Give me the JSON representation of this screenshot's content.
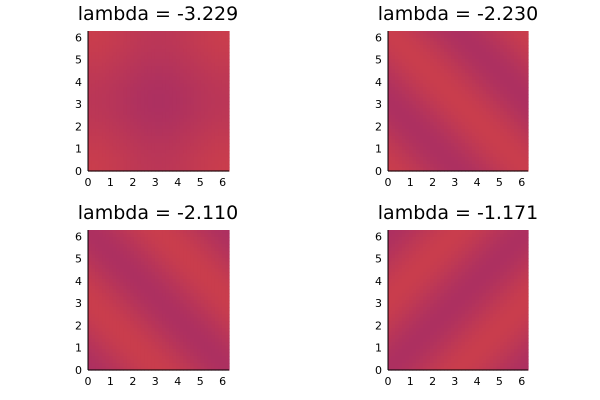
{
  "chart_data": [
    {
      "type": "heatmap",
      "title": "lambda = -3.229",
      "xlim": [
        0,
        6.283
      ],
      "ylim": [
        0,
        6.283
      ],
      "x_ticks": [
        "0",
        "1",
        "2",
        "3",
        "4",
        "5",
        "6"
      ],
      "y_ticks": [
        "0",
        "1",
        "2",
        "3",
        "4",
        "5",
        "6"
      ],
      "pattern": "cos(x) + cos(y)",
      "grid": false,
      "colorbar": false
    },
    {
      "type": "heatmap",
      "title": "lambda = -2.230",
      "xlim": [
        0,
        6.283
      ],
      "ylim": [
        0,
        6.283
      ],
      "x_ticks": [
        "0",
        "1",
        "2",
        "3",
        "4",
        "5",
        "6"
      ],
      "y_ticks": [
        "0",
        "1",
        "2",
        "3",
        "4",
        "5",
        "6"
      ],
      "pattern": "cos(x + y)",
      "grid": false,
      "colorbar": false
    },
    {
      "type": "heatmap",
      "title": "lambda = -2.110",
      "xlim": [
        0,
        6.283
      ],
      "ylim": [
        0,
        6.283
      ],
      "x_ticks": [
        "0",
        "1",
        "2",
        "3",
        "4",
        "5",
        "6"
      ],
      "y_ticks": [
        "0",
        "1",
        "2",
        "3",
        "4",
        "5",
        "6"
      ],
      "pattern": "-cos(x + y)",
      "grid": false,
      "colorbar": false
    },
    {
      "type": "heatmap",
      "title": "lambda = -1.171",
      "xlim": [
        0,
        6.283
      ],
      "ylim": [
        0,
        6.283
      ],
      "x_ticks": [
        "0",
        "1",
        "2",
        "3",
        "4",
        "5",
        "6"
      ],
      "y_ticks": [
        "0",
        "1",
        "2",
        "3",
        "4",
        "5",
        "6"
      ],
      "pattern": "-cos(x - y)",
      "grid": false,
      "colorbar": false
    }
  ],
  "colors": {
    "low": "#ad3060",
    "high": "#c93d4d",
    "axis": "#000000"
  }
}
